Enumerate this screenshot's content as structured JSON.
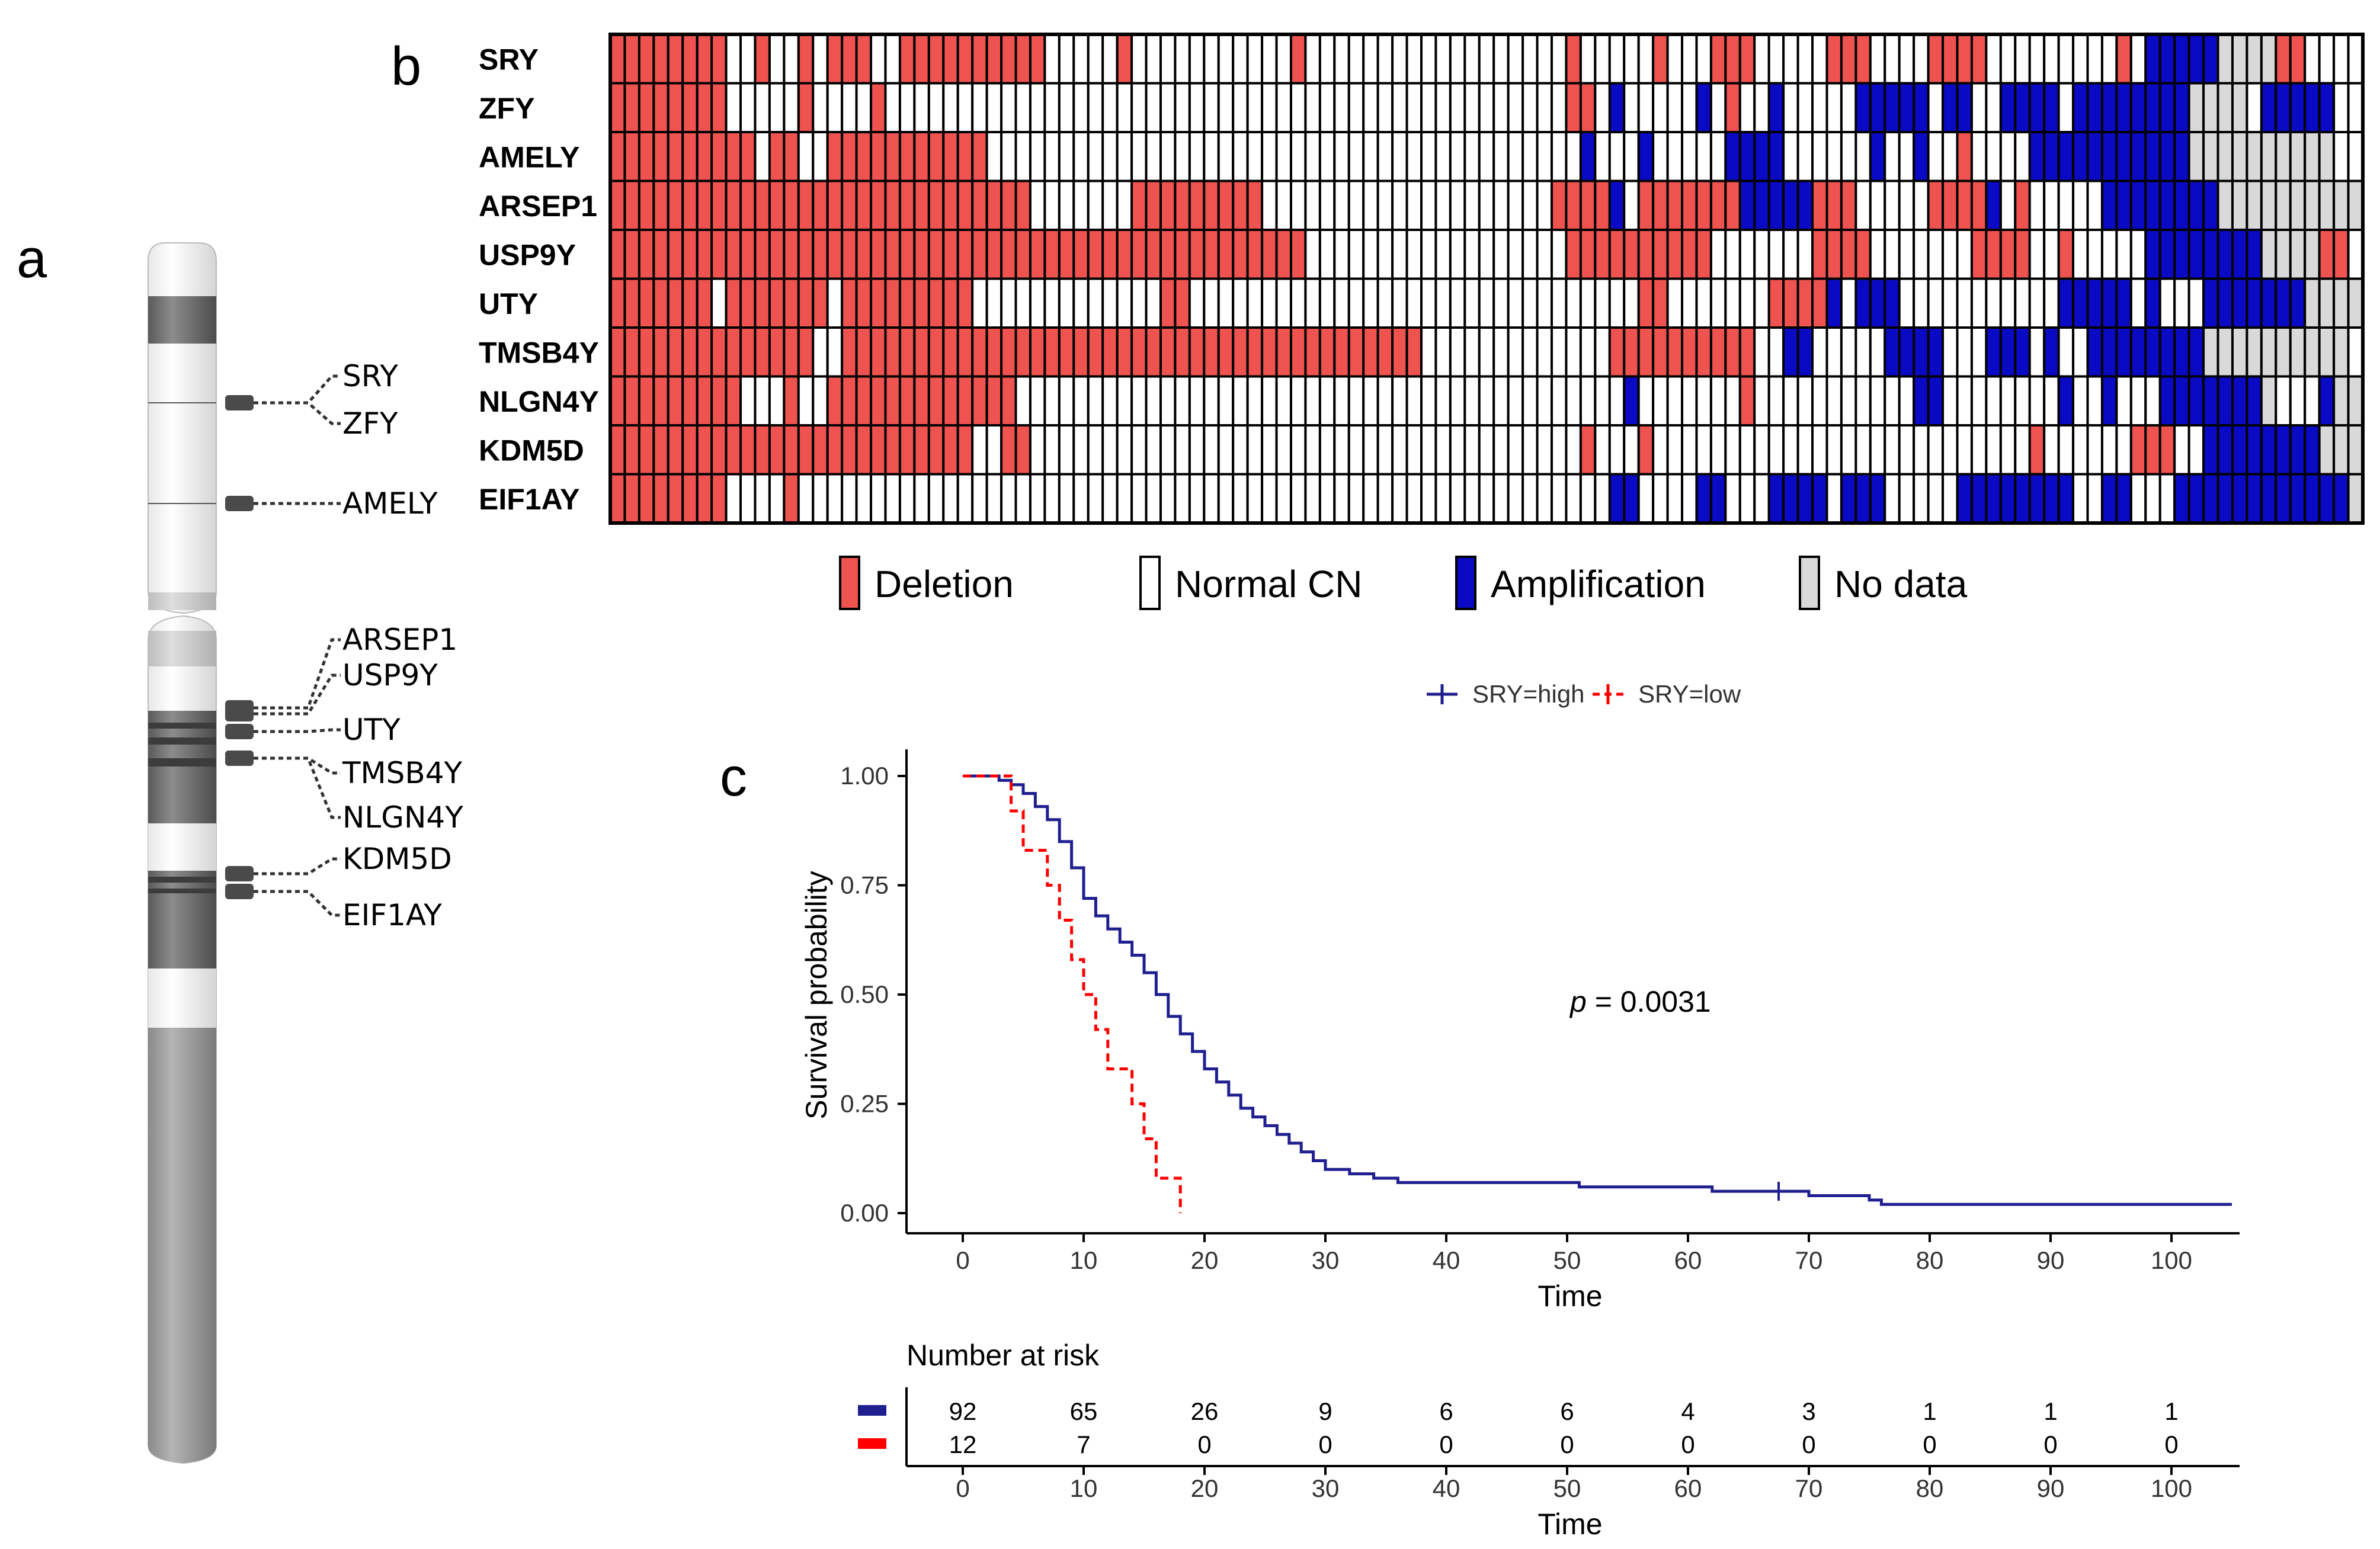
{
  "panels": {
    "a": "a",
    "b": "b",
    "c": "c"
  },
  "idiogram": {
    "genes": [
      "SRY",
      "ZFY",
      "AMELY",
      "ARSEP1",
      "USP9Y",
      "UTY",
      "TMSB4Y",
      "NLGN4Y",
      "KDM5D",
      "EIF1AY"
    ]
  },
  "heatmap": {
    "genes": [
      "SRY",
      "ZFY",
      "AMELY",
      "ARSEP1",
      "USP9Y",
      "UTY",
      "TMSB4Y",
      "NLGN4Y",
      "KDM5D",
      "EIF1AY"
    ],
    "colors": {
      "D": "#ef5350",
      "N": "#ffffff",
      "A": "#0a0ac4",
      "X": "#d9d9d9"
    },
    "legend": [
      {
        "key": "D",
        "label": "Deletion"
      },
      {
        "key": "N",
        "label": "Normal CN"
      },
      {
        "key": "A",
        "label": "Amplification"
      },
      {
        "key": "X",
        "label": "No data"
      }
    ],
    "rows": [
      "DDDDDDDDNNDNNDNDDDNNDDDDDDDDDDNNNNNDNNNNNNNNNNNDNNNNNNNNNNNNNNNNNNDNNNNNDNNNDDDNNNNNDDDNNNNDDDDNNNNNNNNNDNAAAAAXXXXDDNNNN",
      "DDDDDDDDNNNNNDNNNNDNNNNNNNNNNNNNNNNNNNNNNNNNNNNNNNNNNNNNNNNNNNNNNNDDNANNNNNANDNNANNNNNAAAAANAANNAAAANAAAAAAAAXXXXNAAAAA",
      "DDDDDDDDDDNDDNNDDDDDDDDDDDNNNNNNNNNNNNNNNNNNNNNNNNNNNNNNNNNNNNNNNNNANNNANNNNNAAAANNNNNNANNANNDNNNNAAAAAAAAAAAXXXXXXXXXX",
      "DDDDDDDDDDDDDDDDDDDDDDDDDDDDDNNNNNNNDDDDDDDDDNNNNNNNNNNNNNNNNNNNNDDDDANDDDDDDDAAAAADDDNNNNNDDDDANDNNNNNAAAAAAAAXXXXXXXXXX",
      "DDDDDDDDDDDDDDDDDDDDDDDDDDDDDDDDDDDDDDDDDDDDDDDDNNNNNNNNNNNNNNNNNNDDDDDDDDDDNNNNNNNDDDDNNNNNNNDDDDNNDNNNNNAAAAAAAAXXXXDDNAD",
      "DDDDDDDNDDDDDDDNDDDDDDDDDNNNNNNNNNNNNNDDNNNNNNNNNNNNNNNNNNNNNNNNNNNNNNNDDNNNNNNNDDDDANAAANNNNNNNNNNNAAAAANANNNAAAAAAAXXXXXXNXX",
      "DDDDDDDDDDDDDDNNDDDDDDDDDDDDDDDDDDDDDDDDDDDDDDDDDDDDDDDDNNNNNNNNNNNNNDDDDDDDDDDNNAANNNNNAAAANNNAAANANNAAAAAAAAXXXXXXXXXX",
      "DDDDDDDDDNNNDNNDDDDDDDDDDDDDNNNNNNNNNNNNNNNNNNNNNNNNNNNNNNNNNNNNNNNNNNANNNNNNNDNNNNNNNNNNNAANNNNNNNNANNANNNAAAAAAAXNNNAXXXX",
      "DDDDDDDDDDDDDDDDDDDDDDDDDNNDDNNNNNNNNNNNNNNNNNNNNNNNNNNNNNNNNNNNNNNDNNNDNNNNNNNNNNNNNNNNNNNNNNNNNNDNNNNNNDDDNNAAAAAAAAXXXXXXXXXX",
      "DDDDDDDDNNNNDNNNNNNNNNNNNNNNNNNNNNNNNNNNNNNNNNNNNNNNNNNNNNNNNNNNNNNNNAANNNNAANNNAAAANAAANNNNNAAAAAAAANNAANNNAAAAAAAAAAAAXXXXXXXXXX"
    ]
  },
  "km_legend": {
    "high": "SRY=high",
    "low": "SRY=low"
  },
  "pvalue": {
    "p": "p",
    "eq": " = 0.0031"
  },
  "chart_data": {
    "type": "line",
    "title": "",
    "xlabel": "Time",
    "ylabel": "Survival probability",
    "xlim": [
      0,
      105
    ],
    "ylim": [
      0,
      1
    ],
    "xticks": [
      "0",
      "10",
      "20",
      "30",
      "40",
      "50",
      "60",
      "70",
      "80",
      "90",
      "100"
    ],
    "yticks": [
      "0.00",
      "0.25",
      "0.50",
      "0.75",
      "1.00"
    ],
    "series": [
      {
        "name": "SRY=high",
        "color": "#1f1f8f",
        "dash": false,
        "x": [
          0,
          3,
          4,
          5,
          6,
          7,
          8,
          9,
          10,
          11,
          12,
          13,
          14,
          15,
          16,
          17,
          18,
          19,
          20,
          21,
          22,
          23,
          24,
          25,
          26,
          27,
          28,
          29,
          30,
          32,
          34,
          36,
          40,
          45,
          50,
          51,
          55,
          60,
          62,
          65,
          67,
          68,
          70,
          72,
          75,
          76,
          80,
          90,
          100,
          105
        ],
        "y": [
          1.0,
          0.99,
          0.98,
          0.96,
          0.93,
          0.9,
          0.85,
          0.79,
          0.72,
          0.68,
          0.65,
          0.62,
          0.59,
          0.55,
          0.5,
          0.45,
          0.41,
          0.37,
          0.33,
          0.3,
          0.27,
          0.24,
          0.22,
          0.2,
          0.18,
          0.16,
          0.14,
          0.12,
          0.1,
          0.09,
          0.08,
          0.07,
          0.07,
          0.07,
          0.07,
          0.06,
          0.06,
          0.06,
          0.05,
          0.05,
          0.05,
          0.05,
          0.04,
          0.04,
          0.03,
          0.02,
          0.02,
          0.02,
          0.02,
          0.02
        ],
        "censor_x": [
          67.5
        ],
        "censor_y": [
          0.05
        ]
      },
      {
        "name": "SRY=low",
        "color": "#ff0000",
        "dash": true,
        "x": [
          0,
          4,
          5,
          7,
          8,
          9,
          10,
          11,
          12,
          14,
          15,
          16,
          18
        ],
        "y": [
          1.0,
          0.92,
          0.83,
          0.75,
          0.67,
          0.58,
          0.5,
          0.42,
          0.33,
          0.25,
          0.17,
          0.08,
          0.0
        ],
        "censor_x": [],
        "censor_y": []
      }
    ]
  },
  "risk_table": {
    "title": "Number at risk",
    "xlabel": "Time",
    "high": [
      "92",
      "65",
      "26",
      "9",
      "6",
      "6",
      "4",
      "3",
      "1",
      "1",
      "1"
    ],
    "low": [
      "12",
      "7",
      "0",
      "0",
      "0",
      "0",
      "0",
      "0",
      "0",
      "0",
      "0"
    ],
    "high_color": "#1f1f8f",
    "low_color": "#ff0000"
  }
}
